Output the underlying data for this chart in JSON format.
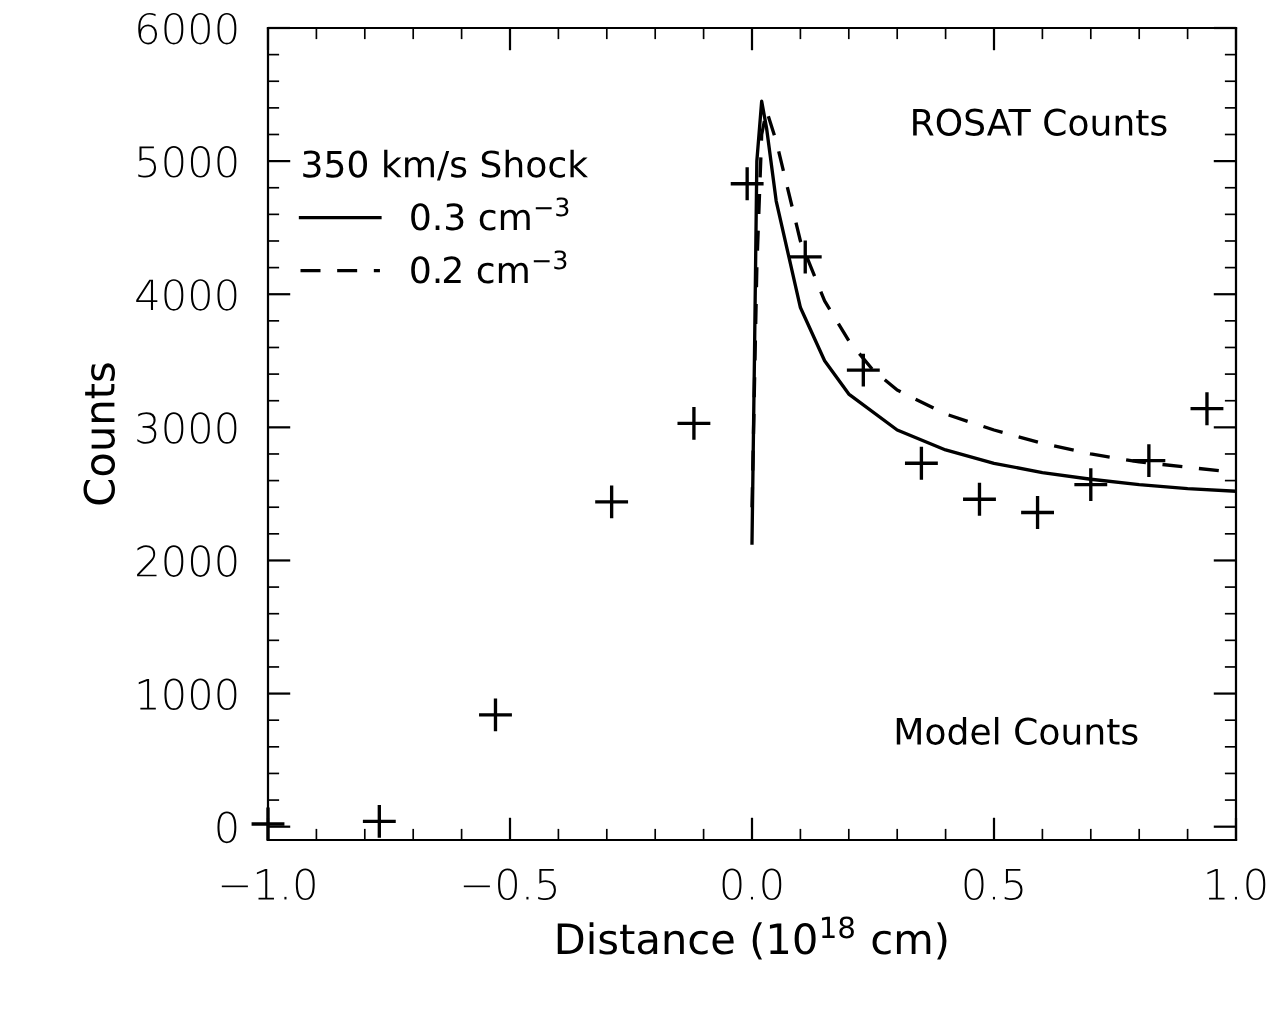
{
  "chart_data": {
    "type": "line",
    "xlabel": "Distance (10$^{18}$ cm)",
    "ylabel": "Counts",
    "legend_title": "350 km/s Shock",
    "legend": "top left",
    "annotations": [
      "ROSAT Counts",
      "Model Counts"
    ],
    "xlim": [
      -1.0,
      1.0
    ],
    "ylim": [
      -100,
      6000
    ],
    "xticks": [
      {
        "value": -1.0,
        "label": "−1.0"
      },
      {
        "value": -0.5,
        "label": "−0.5"
      },
      {
        "value": 0.0,
        "label": "0.0"
      },
      {
        "value": 0.5,
        "label": "0.5"
      },
      {
        "value": 1.0,
        "label": "1.0"
      }
    ],
    "yticks": [
      0,
      1000,
      2000,
      3000,
      4000,
      5000,
      6000
    ],
    "grid": false,
    "series": [
      {
        "name": "0.3 cm$^{−3}$",
        "line_style": "solid",
        "color": "#000000",
        "x": [
          0.0,
          0.005,
          0.01,
          0.02,
          0.03,
          0.05,
          0.1,
          0.15,
          0.2,
          0.3,
          0.4,
          0.5,
          0.6,
          0.7,
          0.8,
          0.9,
          1.0
        ],
        "values": [
          2130,
          3500,
          5000,
          5450,
          5250,
          4700,
          3900,
          3500,
          3250,
          2980,
          2830,
          2730,
          2660,
          2610,
          2570,
          2540,
          2520
        ]
      },
      {
        "name": "0.2 cm$^{−3}$",
        "line_style": "dashed",
        "color": "#000000",
        "x": [
          0.0,
          0.01,
          0.02,
          0.03,
          0.05,
          0.1,
          0.15,
          0.2,
          0.25,
          0.3,
          0.4,
          0.5,
          0.6,
          0.7,
          0.8,
          0.9,
          1.0
        ],
        "values": [
          2400,
          4200,
          5200,
          5380,
          5150,
          4400,
          3950,
          3650,
          3430,
          3280,
          3100,
          2980,
          2880,
          2800,
          2740,
          2700,
          2660
        ]
      },
      {
        "type": "scatter",
        "marker": "cross",
        "color": "#000000",
        "x": [
          -1.0,
          -0.77,
          -0.53,
          -0.29,
          -0.12,
          -0.01,
          0.11,
          0.23,
          0.35,
          0.47,
          0.59,
          0.7,
          0.82,
          0.94
        ],
        "values": [
          20,
          40,
          840,
          2440,
          3030,
          4830,
          4280,
          3430,
          2730,
          2460,
          2360,
          2570,
          2750,
          3140
        ]
      }
    ]
  }
}
